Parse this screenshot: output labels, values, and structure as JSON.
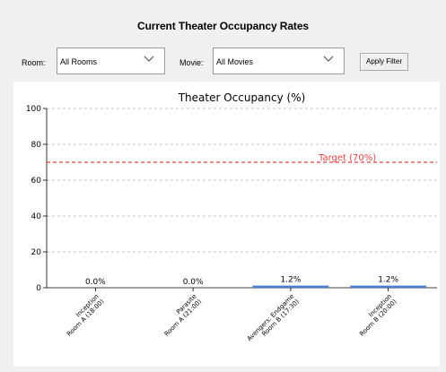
{
  "header": {
    "title": "Current Theater Occupancy Rates"
  },
  "filters": {
    "room_label": "Room:",
    "room_value": "All Rooms",
    "movie_label": "Movie:",
    "movie_value": "All Movies",
    "apply_label": "Apply Filter"
  },
  "chart_data": {
    "type": "bar",
    "title": "Theater Occupancy (%)",
    "xlabel": "",
    "ylabel": "",
    "ylim": [
      0,
      100
    ],
    "yticks": [
      0,
      20,
      40,
      60,
      80,
      100
    ],
    "categories": [
      [
        "Inception",
        "Room A (18:00)"
      ],
      [
        "Parasite",
        "Room A (21:00)"
      ],
      [
        "Avengers: Endgame",
        "Room B (17:30)"
      ],
      [
        "Inception",
        "Room B (20:00)"
      ]
    ],
    "values": [
      0.0,
      0.0,
      1.2,
      1.2
    ],
    "value_labels": [
      "0.0%",
      "0.0%",
      "1.2%",
      "1.2%"
    ],
    "target": {
      "value": 70,
      "label": "Target (70%)"
    },
    "grid": true,
    "colors": {
      "bar": "#4a7fd4",
      "target": "#e8413f",
      "grid": "#b0b0b0"
    }
  }
}
